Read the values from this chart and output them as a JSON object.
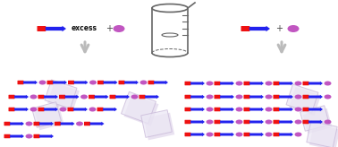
{
  "bg_color": "#ffffff",
  "rod_red": "#ee1111",
  "rod_blue": "#2222ee",
  "ellipse_col": "#bb44bb",
  "text_col": "#111111",
  "beaker_col": "#666666",
  "crystal_fc": "#ece8f5",
  "crystal_ec": "#c8b8d8",
  "arrow_col": "#bbbbbb",
  "figw": 3.78,
  "figh": 1.64,
  "dpi": 100
}
